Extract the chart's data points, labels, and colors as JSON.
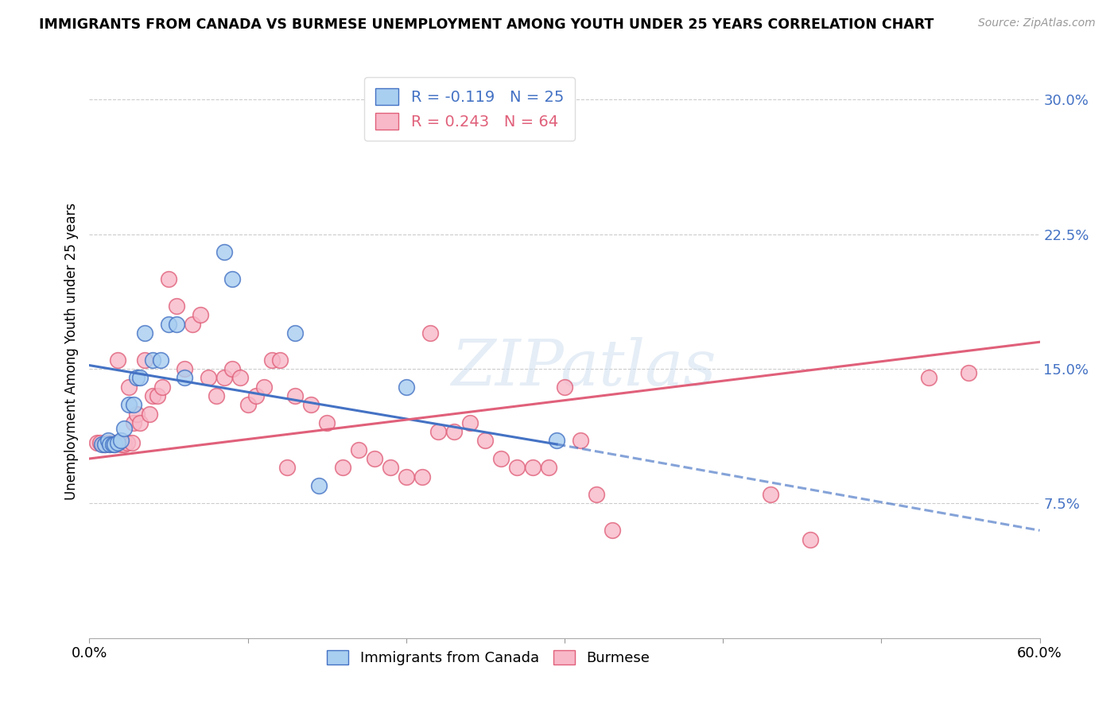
{
  "title": "IMMIGRANTS FROM CANADA VS BURMESE UNEMPLOYMENT AMONG YOUTH UNDER 25 YEARS CORRELATION CHART",
  "source": "Source: ZipAtlas.com",
  "ylabel": "Unemployment Among Youth under 25 years",
  "yticks": [
    "7.5%",
    "15.0%",
    "22.5%",
    "30.0%"
  ],
  "ytick_values": [
    0.075,
    0.15,
    0.225,
    0.3
  ],
  "ymin": 0.0,
  "ymax": 0.32,
  "xmin": 0.0,
  "xmax": 0.6,
  "legend_blue_r": "-0.119",
  "legend_blue_n": "25",
  "legend_pink_r": "0.243",
  "legend_pink_n": "64",
  "blue_color": "#A8CEF0",
  "pink_color": "#F8B8C8",
  "blue_line_color": "#4472C4",
  "pink_line_color": "#E0607A",
  "watermark": "ZIPatlas",
  "blue_scatter_x": [
    0.008,
    0.01,
    0.012,
    0.013,
    0.015,
    0.016,
    0.018,
    0.02,
    0.022,
    0.025,
    0.028,
    0.03,
    0.032,
    0.035,
    0.04,
    0.045,
    0.05,
    0.055,
    0.06,
    0.085,
    0.09,
    0.13,
    0.145,
    0.2,
    0.295
  ],
  "blue_scatter_y": [
    0.108,
    0.108,
    0.11,
    0.108,
    0.108,
    0.108,
    0.109,
    0.11,
    0.117,
    0.13,
    0.13,
    0.145,
    0.145,
    0.17,
    0.155,
    0.155,
    0.175,
    0.175,
    0.145,
    0.215,
    0.2,
    0.17,
    0.085,
    0.14,
    0.11
  ],
  "pink_scatter_x": [
    0.005,
    0.007,
    0.009,
    0.01,
    0.012,
    0.013,
    0.015,
    0.016,
    0.018,
    0.02,
    0.022,
    0.024,
    0.025,
    0.027,
    0.028,
    0.03,
    0.032,
    0.035,
    0.038,
    0.04,
    0.043,
    0.046,
    0.05,
    0.055,
    0.06,
    0.065,
    0.07,
    0.075,
    0.08,
    0.085,
    0.09,
    0.095,
    0.1,
    0.105,
    0.11,
    0.115,
    0.12,
    0.125,
    0.13,
    0.14,
    0.15,
    0.16,
    0.17,
    0.18,
    0.19,
    0.2,
    0.21,
    0.215,
    0.22,
    0.23,
    0.24,
    0.25,
    0.26,
    0.27,
    0.28,
    0.29,
    0.3,
    0.31,
    0.32,
    0.33,
    0.43,
    0.455,
    0.53,
    0.555
  ],
  "pink_scatter_y": [
    0.109,
    0.109,
    0.108,
    0.108,
    0.109,
    0.108,
    0.109,
    0.108,
    0.155,
    0.108,
    0.108,
    0.109,
    0.14,
    0.109,
    0.12,
    0.125,
    0.12,
    0.155,
    0.125,
    0.135,
    0.135,
    0.14,
    0.2,
    0.185,
    0.15,
    0.175,
    0.18,
    0.145,
    0.135,
    0.145,
    0.15,
    0.145,
    0.13,
    0.135,
    0.14,
    0.155,
    0.155,
    0.095,
    0.135,
    0.13,
    0.12,
    0.095,
    0.105,
    0.1,
    0.095,
    0.09,
    0.09,
    0.17,
    0.115,
    0.115,
    0.12,
    0.11,
    0.1,
    0.095,
    0.095,
    0.095,
    0.14,
    0.11,
    0.08,
    0.06,
    0.08,
    0.055,
    0.145,
    0.148
  ],
  "blue_line_x_start": 0.0,
  "blue_line_x_solid_end": 0.295,
  "blue_line_x_dash_end": 0.6,
  "blue_line_y_at_0": 0.152,
  "blue_line_y_at_end": 0.108,
  "blue_line_y_at_60": 0.06,
  "pink_line_y_at_0": 0.1,
  "pink_line_y_at_60": 0.165
}
